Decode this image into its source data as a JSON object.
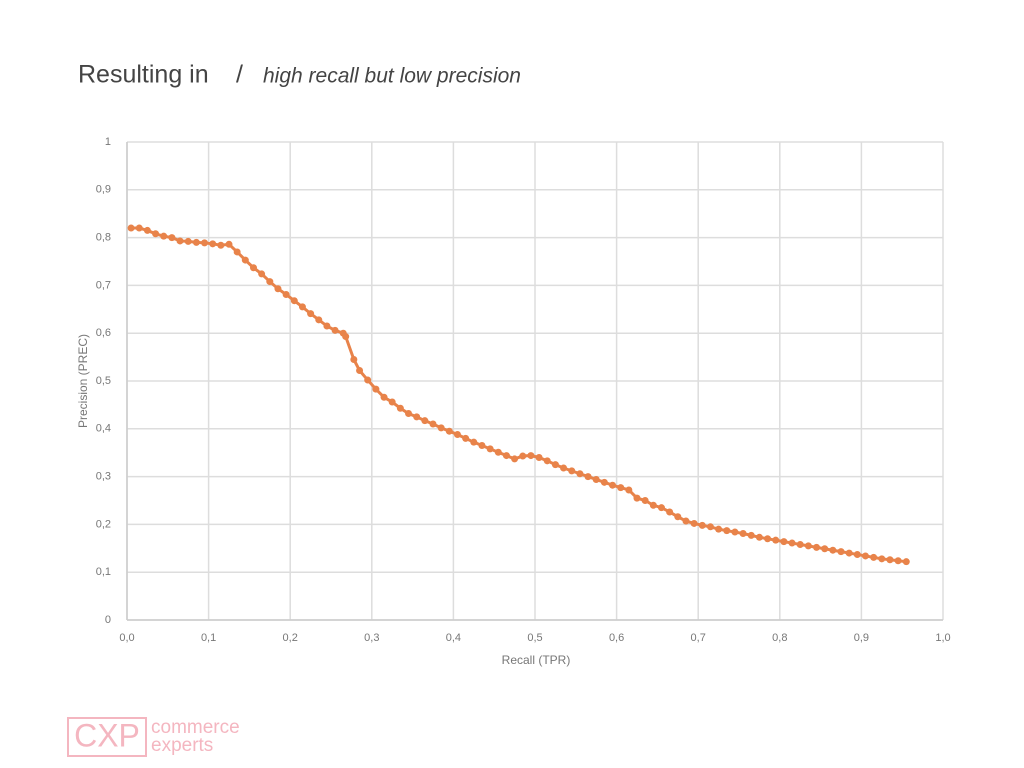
{
  "header": {
    "title": "Resulting in",
    "separator": "/",
    "subtitle": "high recall but low precision"
  },
  "logo": {
    "mark": "CXP",
    "lines": [
      "commerce",
      "experts"
    ]
  },
  "chart_data": {
    "type": "line",
    "markers": true,
    "grid": true,
    "color": "#e8834a",
    "x_label": "Recall (TPR)",
    "y_label": "Precision (PREC)",
    "xlim": [
      0,
      1
    ],
    "ylim": [
      0,
      1
    ],
    "xticks": [
      {
        "value": 0,
        "label": "0,0"
      },
      {
        "value": 0.1,
        "label": "0,1"
      },
      {
        "value": 0.2,
        "label": "0,2"
      },
      {
        "value": 0.3,
        "label": "0,3"
      },
      {
        "value": 0.4,
        "label": "0,4"
      },
      {
        "value": 0.5,
        "label": "0,5"
      },
      {
        "value": 0.6,
        "label": "0,6"
      },
      {
        "value": 0.7,
        "label": "0,7"
      },
      {
        "value": 0.8,
        "label": "0,8"
      },
      {
        "value": 0.9,
        "label": "0,9"
      },
      {
        "value": 1,
        "label": "1,0"
      }
    ],
    "yticks": [
      0,
      {
        "value": 0.1,
        "label": "0,1"
      },
      {
        "value": 0.2,
        "label": "0,2"
      },
      {
        "value": 0.3,
        "label": "0,3"
      },
      {
        "value": 0.4,
        "label": "0,4"
      },
      {
        "value": 0.5,
        "label": "0,5"
      },
      {
        "value": 0.6,
        "label": "0,6"
      },
      {
        "value": 0.7,
        "label": "0,7"
      },
      {
        "value": 0.8,
        "label": "0,8"
      },
      {
        "value": 0.9,
        "label": "0,9"
      },
      1
    ],
    "x": [
      0.005,
      0.015,
      0.025,
      0.035,
      0.045,
      0.055,
      0.065,
      0.075,
      0.085,
      0.095,
      0.105,
      0.115,
      0.125,
      0.135,
      0.145,
      0.155,
      0.165,
      0.175,
      0.185,
      0.195,
      0.205,
      0.215,
      0.225,
      0.235,
      0.245,
      0.255,
      0.265,
      0.268,
      0.278,
      0.285,
      0.295,
      0.305,
      0.315,
      0.325,
      0.335,
      0.345,
      0.355,
      0.365,
      0.375,
      0.385,
      0.395,
      0.405,
      0.415,
      0.425,
      0.435,
      0.445,
      0.455,
      0.465,
      0.475,
      0.485,
      0.495,
      0.505,
      0.515,
      0.525,
      0.535,
      0.545,
      0.555,
      0.565,
      0.575,
      0.585,
      0.595,
      0.605,
      0.615,
      0.625,
      0.635,
      0.645,
      0.655,
      0.665,
      0.675,
      0.685,
      0.695,
      0.705,
      0.715,
      0.725,
      0.735,
      0.745,
      0.755,
      0.765,
      0.775,
      0.785,
      0.795,
      0.805,
      0.815,
      0.825,
      0.835,
      0.845,
      0.855,
      0.865,
      0.875,
      0.885,
      0.895,
      0.905,
      0.915,
      0.925,
      0.935,
      0.945,
      0.955
    ],
    "values": [
      0.82,
      0.82,
      0.815,
      0.808,
      0.803,
      0.8,
      0.793,
      0.792,
      0.79,
      0.789,
      0.787,
      0.784,
      0.786,
      0.77,
      0.753,
      0.737,
      0.724,
      0.708,
      0.693,
      0.681,
      0.668,
      0.655,
      0.641,
      0.628,
      0.615,
      0.606,
      0.6,
      0.593,
      0.545,
      0.522,
      0.502,
      0.483,
      0.466,
      0.456,
      0.443,
      0.432,
      0.425,
      0.417,
      0.41,
      0.402,
      0.395,
      0.388,
      0.38,
      0.372,
      0.365,
      0.358,
      0.351,
      0.344,
      0.337,
      0.343,
      0.344,
      0.34,
      0.333,
      0.325,
      0.318,
      0.312,
      0.306,
      0.3,
      0.294,
      0.288,
      0.282,
      0.277,
      0.272,
      0.255,
      0.25,
      0.24,
      0.235,
      0.226,
      0.216,
      0.207,
      0.202,
      0.198,
      0.195,
      0.19,
      0.187,
      0.184,
      0.181,
      0.177,
      0.173,
      0.17,
      0.167,
      0.164,
      0.161,
      0.158,
      0.155,
      0.152,
      0.149,
      0.146,
      0.143,
      0.14,
      0.137,
      0.134,
      0.131,
      0.128,
      0.126,
      0.124,
      0.122
    ]
  }
}
